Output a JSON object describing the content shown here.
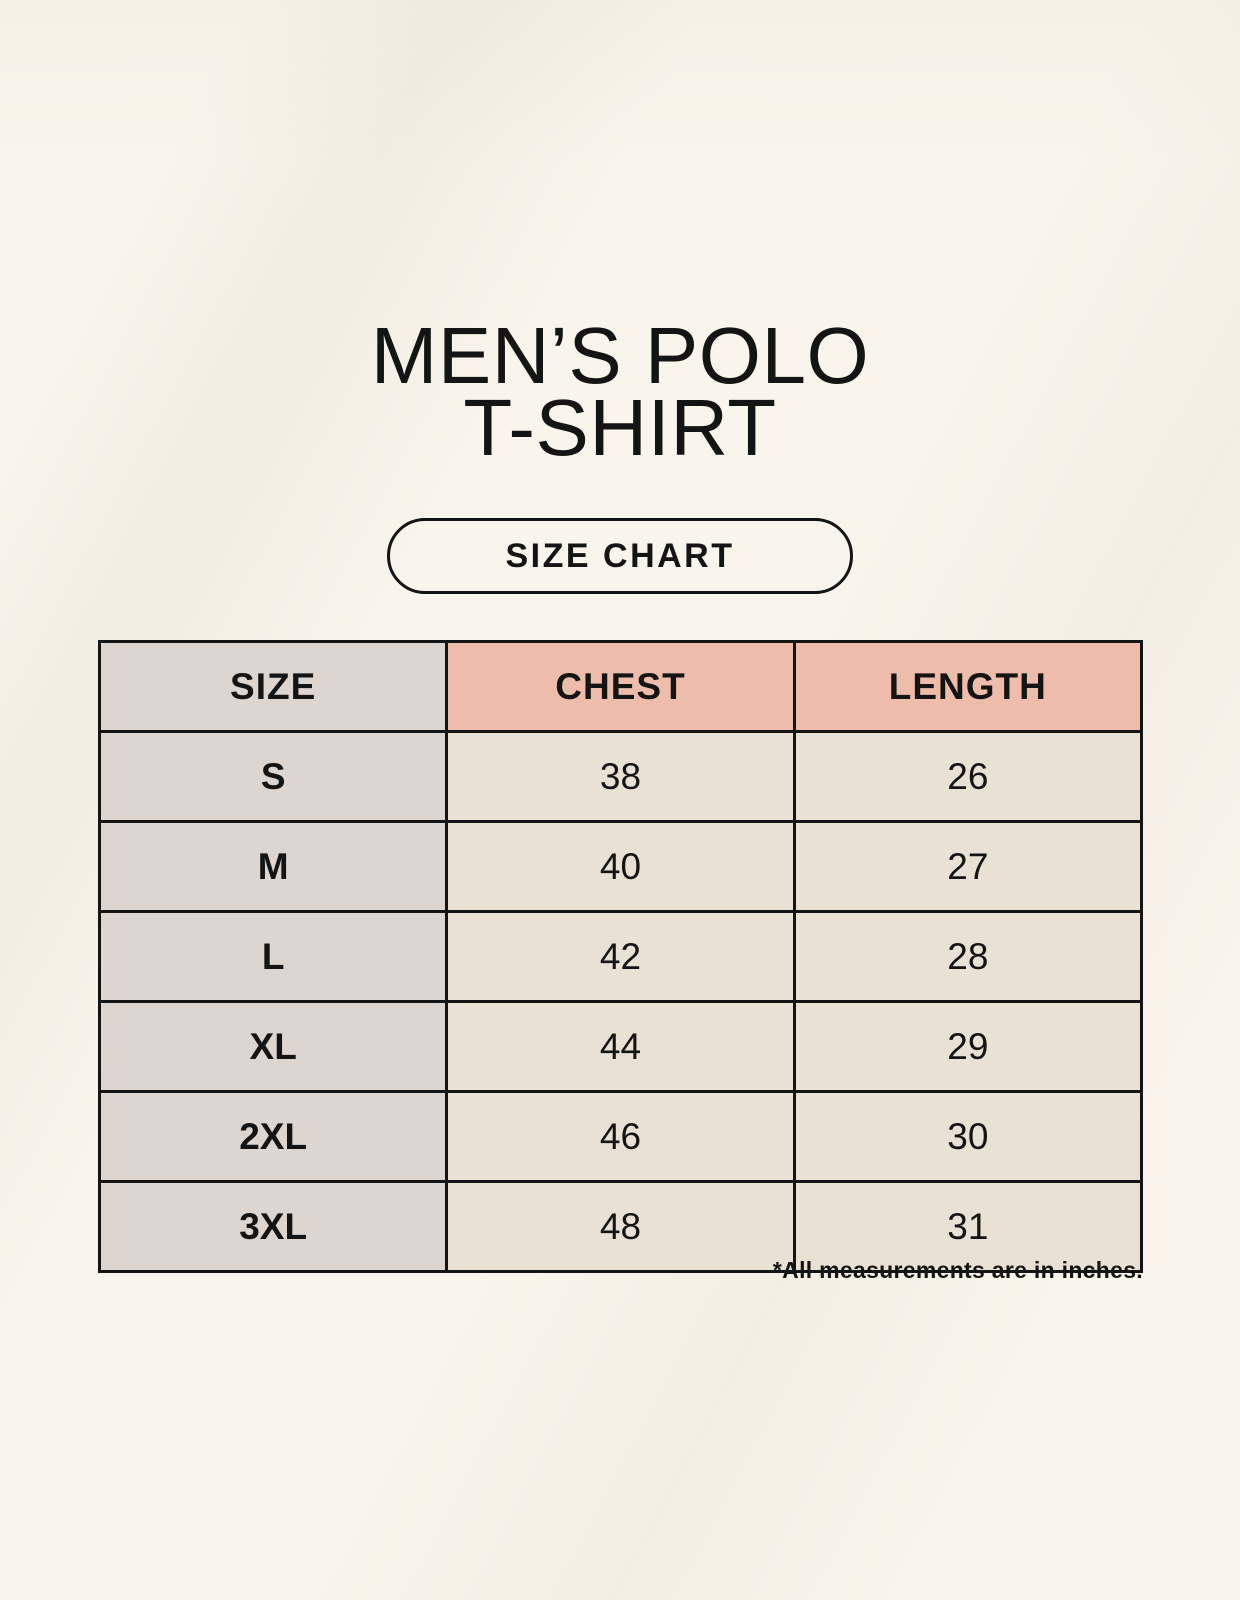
{
  "header": {
    "title_line1": "MEN’S POLO",
    "title_line2": "T-SHIRT"
  },
  "size_chart_button": {
    "label": "SIZE CHART"
  },
  "chart_data": {
    "type": "table",
    "title": "MEN’S POLO T-SHIRT",
    "subtitle": "SIZE CHART",
    "columns": [
      "SIZE",
      "CHEST",
      "LENGTH"
    ],
    "rows": [
      [
        "S",
        "38",
        "26"
      ],
      [
        "M",
        "40",
        "27"
      ],
      [
        "L",
        "42",
        "28"
      ],
      [
        "XL",
        "44",
        "29"
      ],
      [
        "2XL",
        "46",
        "30"
      ],
      [
        "3XL",
        "48",
        "31"
      ]
    ],
    "units": "inches"
  },
  "footnote": "*All measurements are in inches.",
  "colors": {
    "page_background": "#f9f5ec",
    "size_column_bg": "#ddd6d0",
    "header_accent_bg": "#eebcab",
    "value_cell_bg": "#e9e2d4",
    "border": "#141414",
    "text": "#141414"
  }
}
